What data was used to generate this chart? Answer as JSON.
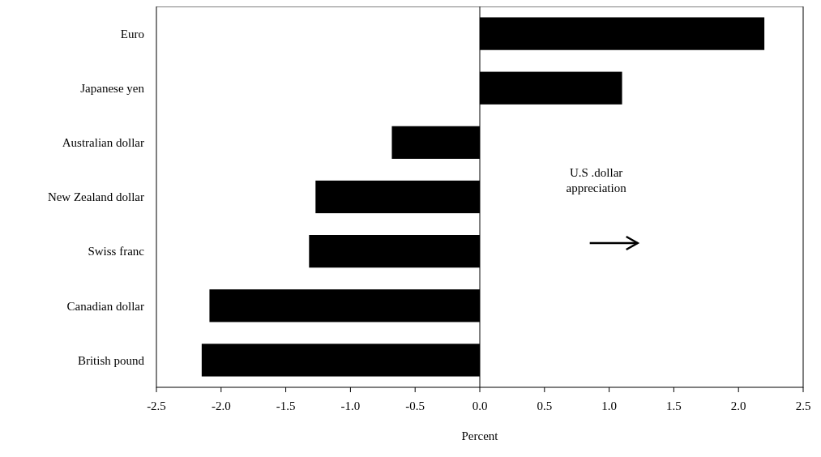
{
  "chart_data": {
    "type": "bar",
    "orientation": "horizontal",
    "categories": [
      "Euro",
      "Japanese yen",
      "Australian dollar",
      "New Zealand dollar",
      "Swiss franc",
      "Canadian dollar",
      "British pound"
    ],
    "values": [
      2.2,
      1.1,
      -0.68,
      -1.27,
      -1.32,
      -2.09,
      -2.15
    ],
    "color": "#000000",
    "xlim": [
      -2.5,
      2.5
    ],
    "xticks": [
      {
        "value": -2.5,
        "label": "-2.5"
      },
      {
        "value": -2,
        "label": "-2.0"
      },
      {
        "value": -1.5,
        "label": "-1.5"
      },
      {
        "value": -1,
        "label": "-1.0"
      },
      {
        "value": -0.5,
        "label": "-0.5"
      },
      {
        "value": 0,
        "label": "0.0"
      },
      {
        "value": 0.5,
        "label": "0.5"
      },
      {
        "value": 1,
        "label": "1.0"
      },
      {
        "value": 1.5,
        "label": "1.5"
      },
      {
        "value": 2,
        "label": "2.0"
      },
      {
        "value": 2.5,
        "label": "2.5"
      }
    ],
    "xlabel": "Percent",
    "annotations": [
      "U.S .dollar appreciation"
    ]
  }
}
